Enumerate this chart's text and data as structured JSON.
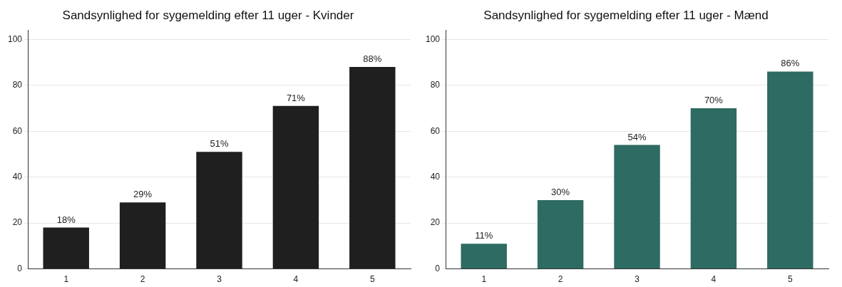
{
  "chart_data": [
    {
      "type": "bar",
      "title": "Sandsynlighed for sygemelding efter 11 uger - Kvinder",
      "categories": [
        "1",
        "2",
        "3",
        "4",
        "5"
      ],
      "values": [
        18,
        29,
        51,
        71,
        88
      ],
      "value_labels": [
        "18%",
        "29%",
        "51%",
        "71%",
        "88%"
      ],
      "color": "#1f1f1f",
      "ylim": [
        0,
        104
      ],
      "yticks": [
        0,
        20,
        40,
        60,
        80,
        100
      ],
      "grid": "y"
    },
    {
      "type": "bar",
      "title": "Sandsynlighed for sygemelding efter 11 uger - Mænd",
      "categories": [
        "1",
        "2",
        "3",
        "4",
        "5"
      ],
      "values": [
        11,
        30,
        54,
        70,
        86
      ],
      "value_labels": [
        "11%",
        "30%",
        "54%",
        "70%",
        "86%"
      ],
      "color": "#2e6b62",
      "ylim": [
        0,
        104
      ],
      "yticks": [
        0,
        20,
        40,
        60,
        80,
        100
      ],
      "grid": "y"
    }
  ]
}
